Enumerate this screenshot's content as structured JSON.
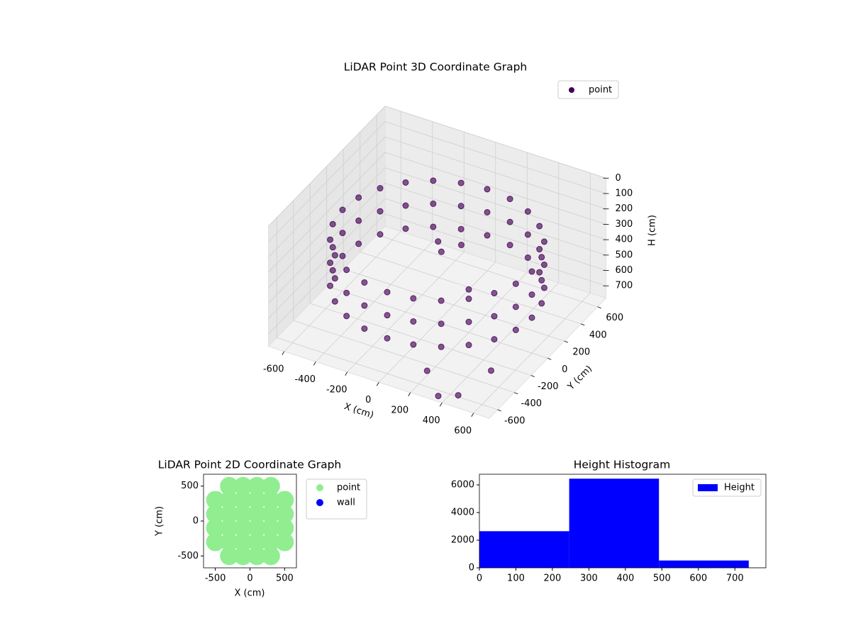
{
  "chart_data": [
    {
      "type": "scatter3d",
      "title": "LiDAR Point 3D Coordinate Graph",
      "xlabel": "X (cm)",
      "ylabel": "Y (cm)",
      "zlabel": "H (cm)",
      "xlim": [
        -700,
        700
      ],
      "ylim": [
        -700,
        700
      ],
      "zlim": [
        0,
        780
      ],
      "z_inverted": true,
      "xticks": [
        -600,
        -400,
        -200,
        0,
        200,
        400,
        600
      ],
      "yticks": [
        -600,
        -400,
        -200,
        0,
        200,
        400,
        600
      ],
      "zticks": [
        0,
        100,
        200,
        300,
        400,
        500,
        600,
        700
      ],
      "legend": "upper right",
      "grid": true,
      "series": [
        {
          "name": "point",
          "color": "#440154",
          "x": [
            600,
            600,
            600,
            580,
            580,
            580,
            520,
            520,
            520,
            424,
            424,
            424,
            300,
            300,
            300,
            155,
            155,
            155,
            0,
            0,
            0,
            -155,
            -155,
            -155,
            -300,
            -300,
            -300,
            -424,
            -424,
            -424,
            -520,
            -520,
            -520,
            -580,
            -580,
            -580,
            -600,
            -600,
            -600,
            -580,
            -580,
            -580,
            -520,
            -520,
            -520,
            -424,
            -424,
            -424,
            -300,
            -300,
            -300,
            -155,
            -155,
            -155,
            0,
            0,
            0,
            155,
            155,
            155,
            300,
            300,
            300,
            424,
            424,
            424,
            520,
            520,
            520,
            580,
            580,
            580,
            100,
            0,
            -100,
            200,
            200,
            500,
            350,
            450
          ],
          "y": [
            0,
            0,
            0,
            155,
            155,
            155,
            300,
            300,
            300,
            424,
            424,
            424,
            520,
            520,
            520,
            580,
            580,
            580,
            600,
            600,
            600,
            580,
            580,
            580,
            520,
            520,
            520,
            424,
            424,
            424,
            300,
            300,
            300,
            155,
            155,
            155,
            0,
            0,
            0,
            -155,
            -155,
            -155,
            -300,
            -300,
            -300,
            -424,
            -424,
            -424,
            -520,
            -520,
            -520,
            -580,
            -580,
            -580,
            -600,
            -600,
            -600,
            -580,
            -580,
            -580,
            -520,
            -520,
            -520,
            -424,
            -424,
            -424,
            -300,
            -300,
            -300,
            -155,
            -155,
            -155,
            100,
            50,
            200,
            0,
            -500,
            -300,
            -650,
            -600
          ],
          "z": [
            250,
            400,
            550,
            250,
            400,
            550,
            250,
            400,
            550,
            250,
            400,
            550,
            250,
            400,
            550,
            250,
            400,
            550,
            250,
            400,
            550,
            250,
            400,
            550,
            250,
            400,
            550,
            250,
            400,
            550,
            250,
            400,
            550,
            250,
            400,
            550,
            250,
            400,
            550,
            250,
            400,
            550,
            250,
            400,
            550,
            250,
            400,
            550,
            250,
            400,
            550,
            250,
            400,
            550,
            250,
            400,
            550,
            250,
            400,
            550,
            250,
            400,
            550,
            250,
            400,
            550,
            250,
            400,
            550,
            250,
            400,
            550,
            300,
            350,
            400,
            500,
            750,
            760,
            780,
            770
          ]
        }
      ]
    },
    {
      "type": "scatter",
      "title": "LiDAR Point 2D Coordinate Graph",
      "xlabel": "X (cm)",
      "ylabel": "Y (cm)",
      "xlim": [
        -670,
        670
      ],
      "ylim": [
        -670,
        670
      ],
      "xticks": [
        -500,
        0,
        500
      ],
      "yticks": [
        -500,
        0,
        500
      ],
      "legend": "outside right",
      "series": [
        {
          "name": "point",
          "color": "#90ee90",
          "x": [
            -500,
            -500,
            -500,
            -500,
            -300,
            -300,
            -300,
            -300,
            -300,
            -300,
            -100,
            -100,
            -100,
            -100,
            -100,
            -100,
            100,
            100,
            100,
            100,
            100,
            100,
            300,
            300,
            300,
            300,
            300,
            300,
            500,
            500,
            500,
            500
          ],
          "y": [
            -300,
            -100,
            100,
            300,
            -500,
            -300,
            -100,
            100,
            300,
            500,
            -500,
            -300,
            -100,
            100,
            300,
            500,
            -500,
            -300,
            -100,
            100,
            300,
            500,
            -500,
            -300,
            -100,
            100,
            300,
            500,
            -300,
            -100,
            100,
            300
          ]
        },
        {
          "name": "wall",
          "color": "#0000ff",
          "x": [],
          "y": []
        }
      ]
    },
    {
      "type": "histogram",
      "title": "Height Histogram",
      "bins": [
        0,
        246,
        492,
        738,
        984
      ],
      "xlim": [
        0,
        785
      ],
      "ylim": [
        0,
        6770
      ],
      "xticks": [
        0,
        100,
        200,
        300,
        400,
        500,
        600,
        700
      ],
      "yticks": [
        0,
        2000,
        4000,
        6000
      ],
      "legend": "upper right",
      "series": [
        {
          "name": "Height",
          "color": "#0000ff",
          "values": [
            2650,
            6450,
            530,
            20
          ]
        }
      ]
    }
  ]
}
